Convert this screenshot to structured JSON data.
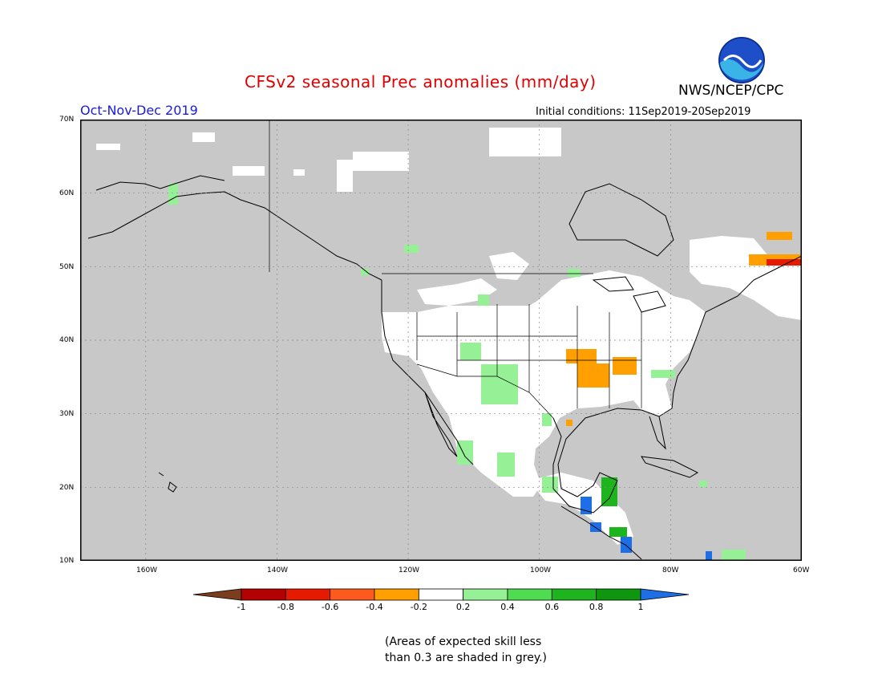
{
  "header": {
    "title": "CFSv2 seasonal Prec anomalies (mm/day)",
    "agency": "NWS/NCEP/CPC",
    "logo_text": "NOAA",
    "season": "Oct-Nov-Dec 2019",
    "initial_conditions": "Initial conditions: 11Sep2019-20Sep2019"
  },
  "map": {
    "projection": "lat-lon",
    "lon_range": [
      -170,
      -60
    ],
    "lat_range": [
      10,
      70
    ],
    "y_ticks": [
      "70N",
      "60N",
      "50N",
      "40N",
      "30N",
      "20N",
      "10N"
    ],
    "x_ticks": [
      "160W",
      "140W",
      "120W",
      "100W",
      "80W",
      "60W"
    ],
    "colors": {
      "grey_mask": "#c8c8c8",
      "ocean_background": "#c8c8c8",
      "land_neutral": "#ffffff",
      "coastline": "#000000"
    },
    "grid": "dotted"
  },
  "colorbar": {
    "labels": [
      "-1",
      "-0.8",
      "-0.6",
      "-0.4",
      "-0.2",
      "0.2",
      "0.4",
      "0.6",
      "0.8",
      "1"
    ],
    "colors": [
      "#7a3d1e",
      "#b40000",
      "#e61a00",
      "#ff5a1e",
      "#ffa000",
      "#ffffff",
      "#96f096",
      "#50dc50",
      "#1eb41e",
      "#0f960f",
      "#1e6ee6"
    ]
  },
  "footnote": {
    "line1": "(Areas of expected skill less",
    "line2": "than 0.3 are shaded in grey.)"
  }
}
